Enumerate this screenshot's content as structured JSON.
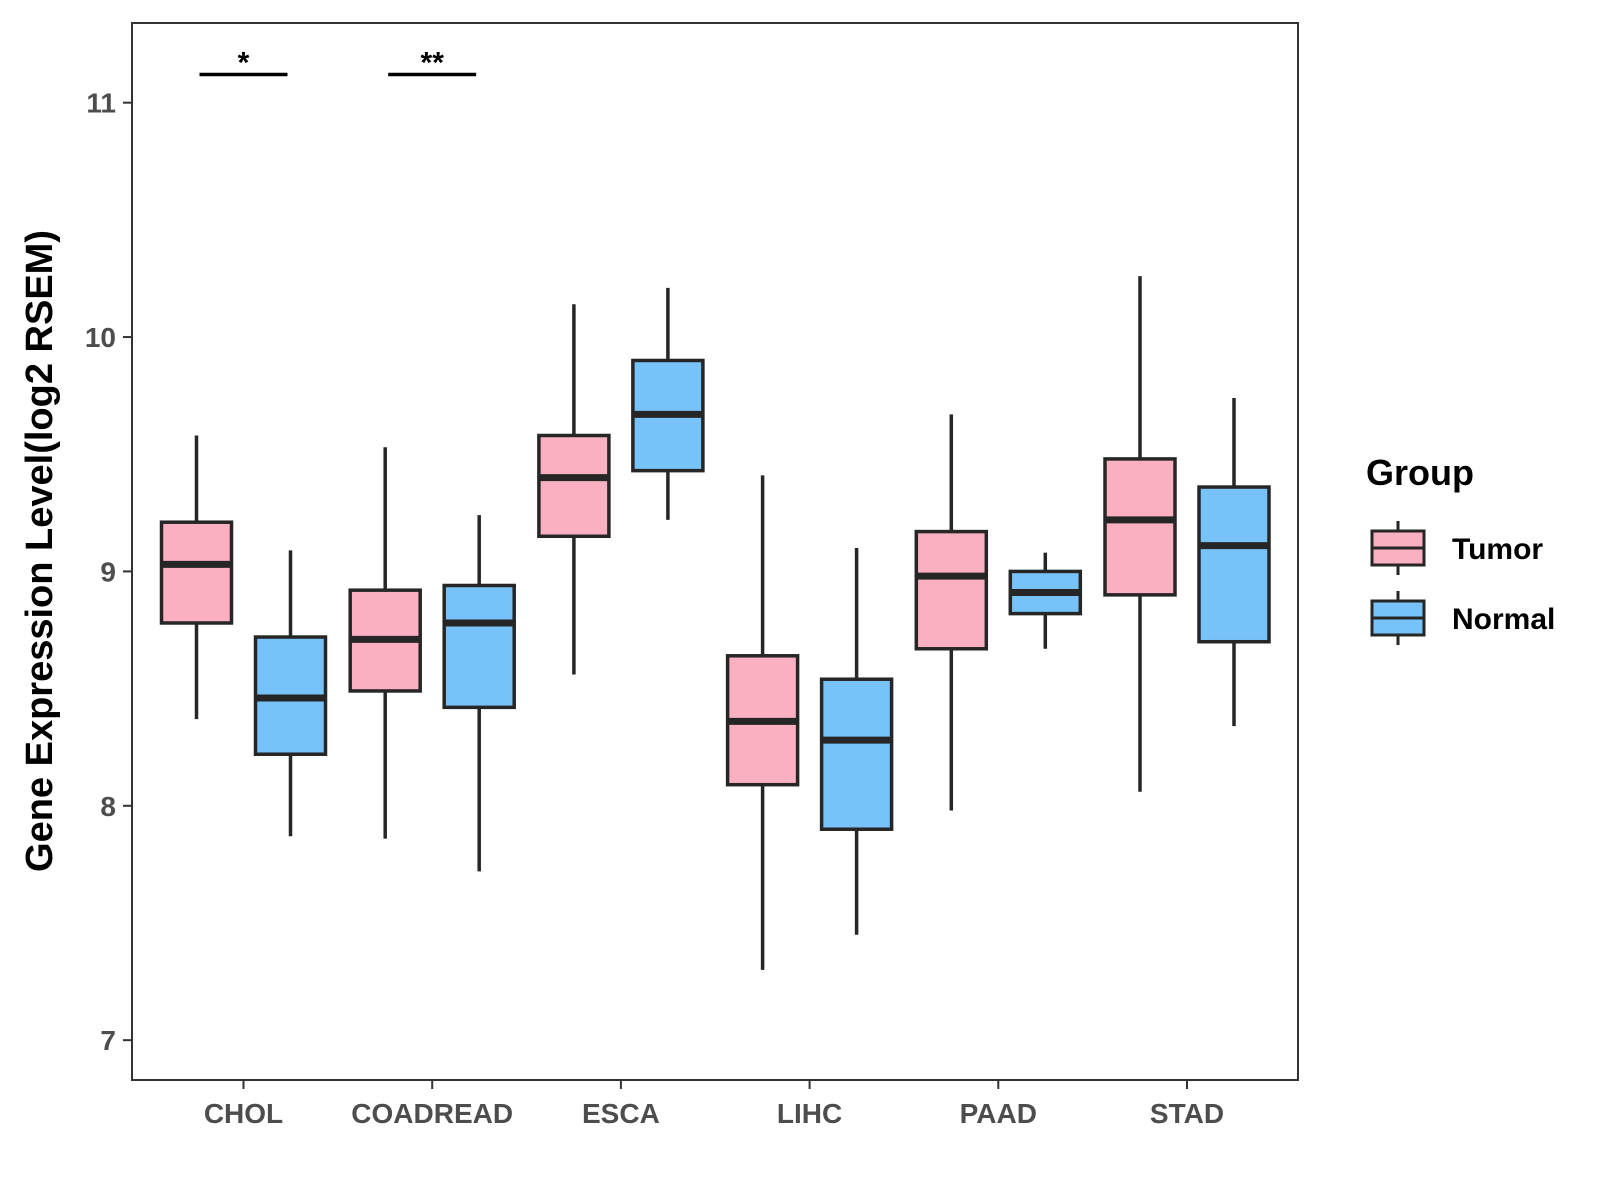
{
  "chart_data": {
    "type": "boxplot",
    "title": "",
    "xlabel": "",
    "ylabel": "Gene Expression Level(log2 RSEM)",
    "ylim": [
      6.83,
      11.34
    ],
    "yticks": [
      7,
      8,
      9,
      10,
      11
    ],
    "categories": [
      "CHOL",
      "COADREAD",
      "ESCA",
      "LIHC",
      "PAAD",
      "STAD"
    ],
    "legend": {
      "title": "Group",
      "position": "right"
    },
    "series": [
      {
        "name": "Tumor",
        "color": "#fbb0c1",
        "boxes": [
          {
            "whisker_low": 8.37,
            "q1": 8.78,
            "median": 9.03,
            "q3": 9.21,
            "whisker_high": 9.58
          },
          {
            "whisker_low": 7.86,
            "q1": 8.49,
            "median": 8.71,
            "q3": 8.92,
            "whisker_high": 9.53
          },
          {
            "whisker_low": 8.56,
            "q1": 9.15,
            "median": 9.4,
            "q3": 9.58,
            "whisker_high": 10.14
          },
          {
            "whisker_low": 7.3,
            "q1": 8.09,
            "median": 8.36,
            "q3": 8.64,
            "whisker_high": 9.41
          },
          {
            "whisker_low": 7.98,
            "q1": 8.67,
            "median": 8.98,
            "q3": 9.17,
            "whisker_high": 9.67
          },
          {
            "whisker_low": 8.06,
            "q1": 8.9,
            "median": 9.22,
            "q3": 9.48,
            "whisker_high": 10.26
          }
        ]
      },
      {
        "name": "Normal",
        "color": "#77c2f8",
        "boxes": [
          {
            "whisker_low": 7.87,
            "q1": 8.22,
            "median": 8.46,
            "q3": 8.72,
            "whisker_high": 9.09
          },
          {
            "whisker_low": 7.72,
            "q1": 8.42,
            "median": 8.78,
            "q3": 8.94,
            "whisker_high": 9.24
          },
          {
            "whisker_low": 9.22,
            "q1": 9.43,
            "median": 9.67,
            "q3": 9.9,
            "whisker_high": 10.21
          },
          {
            "whisker_low": 7.45,
            "q1": 7.9,
            "median": 8.28,
            "q3": 8.54,
            "whisker_high": 9.1
          },
          {
            "whisker_low": 8.67,
            "q1": 8.82,
            "median": 8.91,
            "q3": 9.0,
            "whisker_high": 9.08
          },
          {
            "whisker_low": 8.34,
            "q1": 8.7,
            "median": 9.11,
            "q3": 9.36,
            "whisker_high": 9.74
          }
        ]
      }
    ],
    "annotations": [
      {
        "category": "CHOL",
        "label": "*",
        "y": 11.12
      },
      {
        "category": "COADREAD",
        "label": "**",
        "y": 11.12
      }
    ]
  }
}
